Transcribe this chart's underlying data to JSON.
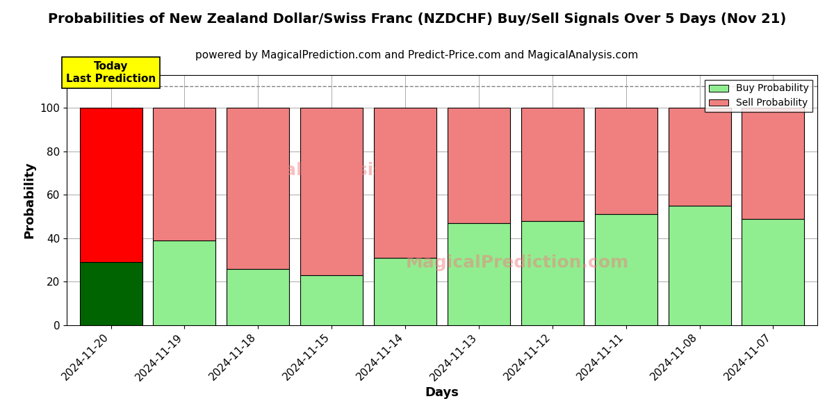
{
  "title": "Probabilities of New Zealand Dollar/Swiss Franc (NZDCHF) Buy/Sell Signals Over 5 Days (Nov 21)",
  "subtitle": "powered by MagicalPrediction.com and Predict-Price.com and MagicalAnalysis.com",
  "xlabel": "Days",
  "ylabel": "Probability",
  "categories": [
    "2024-11-20",
    "2024-11-19",
    "2024-11-18",
    "2024-11-15",
    "2024-11-14",
    "2024-11-13",
    "2024-11-12",
    "2024-11-11",
    "2024-11-08",
    "2024-11-07"
  ],
  "buy_values": [
    29,
    39,
    26,
    23,
    31,
    47,
    48,
    51,
    55,
    49
  ],
  "sell_values": [
    71,
    61,
    74,
    77,
    69,
    53,
    52,
    49,
    45,
    51
  ],
  "today_buy_color": "#006400",
  "today_sell_color": "#ff0000",
  "other_buy_color": "#90EE90",
  "other_sell_color": "#F08080",
  "today_label_bg": "#ffff00",
  "dashed_line_y": 110,
  "ylim": [
    0,
    115
  ],
  "yticks": [
    0,
    20,
    40,
    60,
    80,
    100
  ],
  "legend_buy": "Buy Probability",
  "legend_sell": "Sell Probability",
  "bar_width": 0.85,
  "title_fontsize": 14,
  "subtitle_fontsize": 11,
  "axis_label_fontsize": 13,
  "tick_fontsize": 11,
  "legend_fontsize": 10,
  "background_color": "#ffffff",
  "grid_color": "#aaaaaa"
}
